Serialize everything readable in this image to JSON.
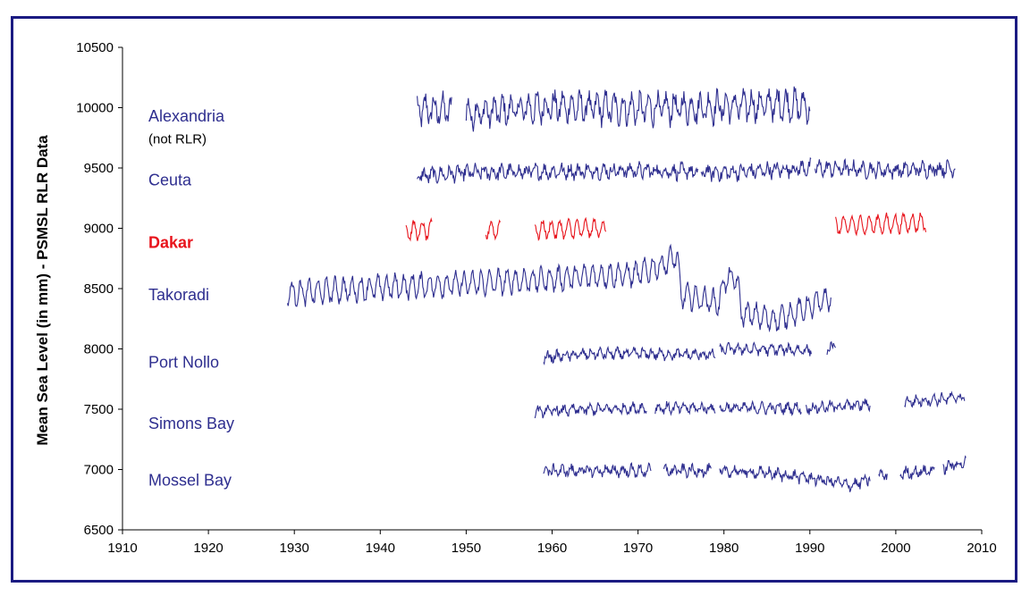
{
  "colors": {
    "frame": "#1b1b82",
    "series_default": "#2e2e8f",
    "highlight": "#e8141c",
    "axis": "#000000"
  },
  "chart_data": {
    "type": "line",
    "title": "",
    "xlabel": "",
    "ylabel": "Mean Sea Level (in mm) - PSMSL RLR Data",
    "xlim": [
      1910,
      2010
    ],
    "ylim": [
      6500,
      10500
    ],
    "xticks": [
      1910,
      1920,
      1930,
      1940,
      1950,
      1960,
      1970,
      1980,
      1990,
      2000,
      2010
    ],
    "yticks": [
      6500,
      7000,
      7500,
      8000,
      8500,
      9000,
      9500,
      10000,
      10500
    ],
    "grid": false,
    "legend": "inline labels on left",
    "series": [
      {
        "name": "Alexandria",
        "note": "(not RLR)",
        "color": "#2e2e8f",
        "bold": false,
        "mean": 10000,
        "amplitude": 100,
        "noise": 70,
        "label_y": 9930,
        "note_y": 9740,
        "points": [
          [
            1944.3,
            9980
          ],
          [
            1948.3,
            9980
          ],
          [
            1950.0,
            9950
          ],
          [
            1960.0,
            10010
          ],
          [
            1970.0,
            9990
          ],
          [
            1980.0,
            10010
          ],
          [
            1987.0,
            10030
          ],
          [
            1990.0,
            10010
          ]
        ],
        "segments": [
          [
            1944.3,
            1948.3
          ],
          [
            1950.0,
            1990.0
          ]
        ]
      },
      {
        "name": "Ceuta",
        "note": "",
        "color": "#2e2e8f",
        "bold": false,
        "mean": 9470,
        "amplitude": 40,
        "noise": 45,
        "label_y": 9400,
        "points": [
          [
            1944.3,
            9430
          ],
          [
            1950.0,
            9460
          ],
          [
            1960.0,
            9470
          ],
          [
            1970.0,
            9480
          ],
          [
            1975.0,
            9470
          ],
          [
            1980.0,
            9460
          ],
          [
            1990.0,
            9500
          ],
          [
            2000.0,
            9480
          ],
          [
            2007.0,
            9500
          ]
        ],
        "segments": [
          [
            1944.3,
            1977.0
          ],
          [
            1977.3,
            1990.2
          ],
          [
            1990.6,
            2007.0
          ]
        ]
      },
      {
        "name": "Dakar",
        "note": "",
        "color": "#e8141c",
        "bold": true,
        "mean": 8980,
        "amplitude": 70,
        "noise": 25,
        "label_y": 8880,
        "points": [
          [
            1943.0,
            8980
          ],
          [
            1953.0,
            8990
          ],
          [
            1959.0,
            8990
          ],
          [
            1967.0,
            9000
          ],
          [
            1993.0,
            9020
          ],
          [
            2003.5,
            9050
          ]
        ],
        "segments": [
          [
            1943.0,
            1946.0
          ],
          [
            1952.3,
            1954.0
          ],
          [
            1958.0,
            1966.3
          ],
          [
            1993.0,
            2003.5
          ]
        ]
      },
      {
        "name": "Takoradi",
        "note": "",
        "color": "#2e2e8f",
        "bold": false,
        "mean": 8520,
        "amplitude": 90,
        "noise": 35,
        "label_y": 8450,
        "points": [
          [
            1929.2,
            8460
          ],
          [
            1940.0,
            8510
          ],
          [
            1950.0,
            8540
          ],
          [
            1960.0,
            8580
          ],
          [
            1966.0,
            8610
          ],
          [
            1970.0,
            8620
          ],
          [
            1973.0,
            8700
          ],
          [
            1974.5,
            8780
          ],
          [
            1975.0,
            8450
          ],
          [
            1979.5,
            8380
          ],
          [
            1980.0,
            8570
          ],
          [
            1981.5,
            8590
          ],
          [
            1982.0,
            8300
          ],
          [
            1986.0,
            8240
          ],
          [
            1990.0,
            8350
          ],
          [
            1992.5,
            8430
          ]
        ],
        "segments": [
          [
            1929.2,
            1992.5
          ]
        ]
      },
      {
        "name": "Port Nollo",
        "note": "",
        "color": "#2e2e8f",
        "bold": false,
        "mean": 7960,
        "amplitude": 30,
        "noise": 30,
        "label_y": 7890,
        "points": [
          [
            1959.0,
            7930
          ],
          [
            1965.0,
            7960
          ],
          [
            1970.0,
            7960
          ],
          [
            1979.0,
            7950
          ],
          [
            1980.0,
            8000
          ],
          [
            1990.0,
            7990
          ],
          [
            1992.5,
            8010
          ]
        ],
        "segments": [
          [
            1959.0,
            1979.0
          ],
          [
            1979.5,
            1990.2
          ],
          [
            1992.0,
            1993.0
          ]
        ]
      },
      {
        "name": "Simons Bay",
        "note": "",
        "color": "#2e2e8f",
        "bold": false,
        "mean": 7500,
        "amplitude": 30,
        "noise": 30,
        "label_y": 7380,
        "points": [
          [
            1958.0,
            7480
          ],
          [
            1965.0,
            7500
          ],
          [
            1971.0,
            7510
          ],
          [
            1979.0,
            7510
          ],
          [
            1985.0,
            7510
          ],
          [
            1990.0,
            7510
          ],
          [
            1997.0,
            7540
          ],
          [
            2001.0,
            7560
          ],
          [
            2008.0,
            7600
          ]
        ],
        "segments": [
          [
            1958.0,
            1971.0
          ],
          [
            1972.0,
            1979.0
          ],
          [
            1979.5,
            1989.0
          ],
          [
            1989.5,
            1997.0
          ],
          [
            2001.0,
            2008.0
          ]
        ]
      },
      {
        "name": "Mossel Bay",
        "note": "",
        "color": "#2e2e8f",
        "bold": false,
        "mean": 6980,
        "amplitude": 30,
        "noise": 35,
        "label_y": 6910,
        "points": [
          [
            1959.0,
            6990
          ],
          [
            1965.0,
            6990
          ],
          [
            1971.0,
            6990
          ],
          [
            1979.0,
            6990
          ],
          [
            1985.0,
            6970
          ],
          [
            1990.0,
            6930
          ],
          [
            1995.0,
            6870
          ],
          [
            1998.0,
            6950
          ],
          [
            2004.0,
            6990
          ],
          [
            2008.0,
            7060
          ]
        ],
        "segments": [
          [
            1959.0,
            1971.5
          ],
          [
            1973.0,
            1978.5
          ],
          [
            1979.5,
            1997.0
          ],
          [
            1998.0,
            1999.0
          ],
          [
            2000.5,
            2004.5
          ],
          [
            2005.5,
            2008.2
          ]
        ]
      }
    ]
  }
}
